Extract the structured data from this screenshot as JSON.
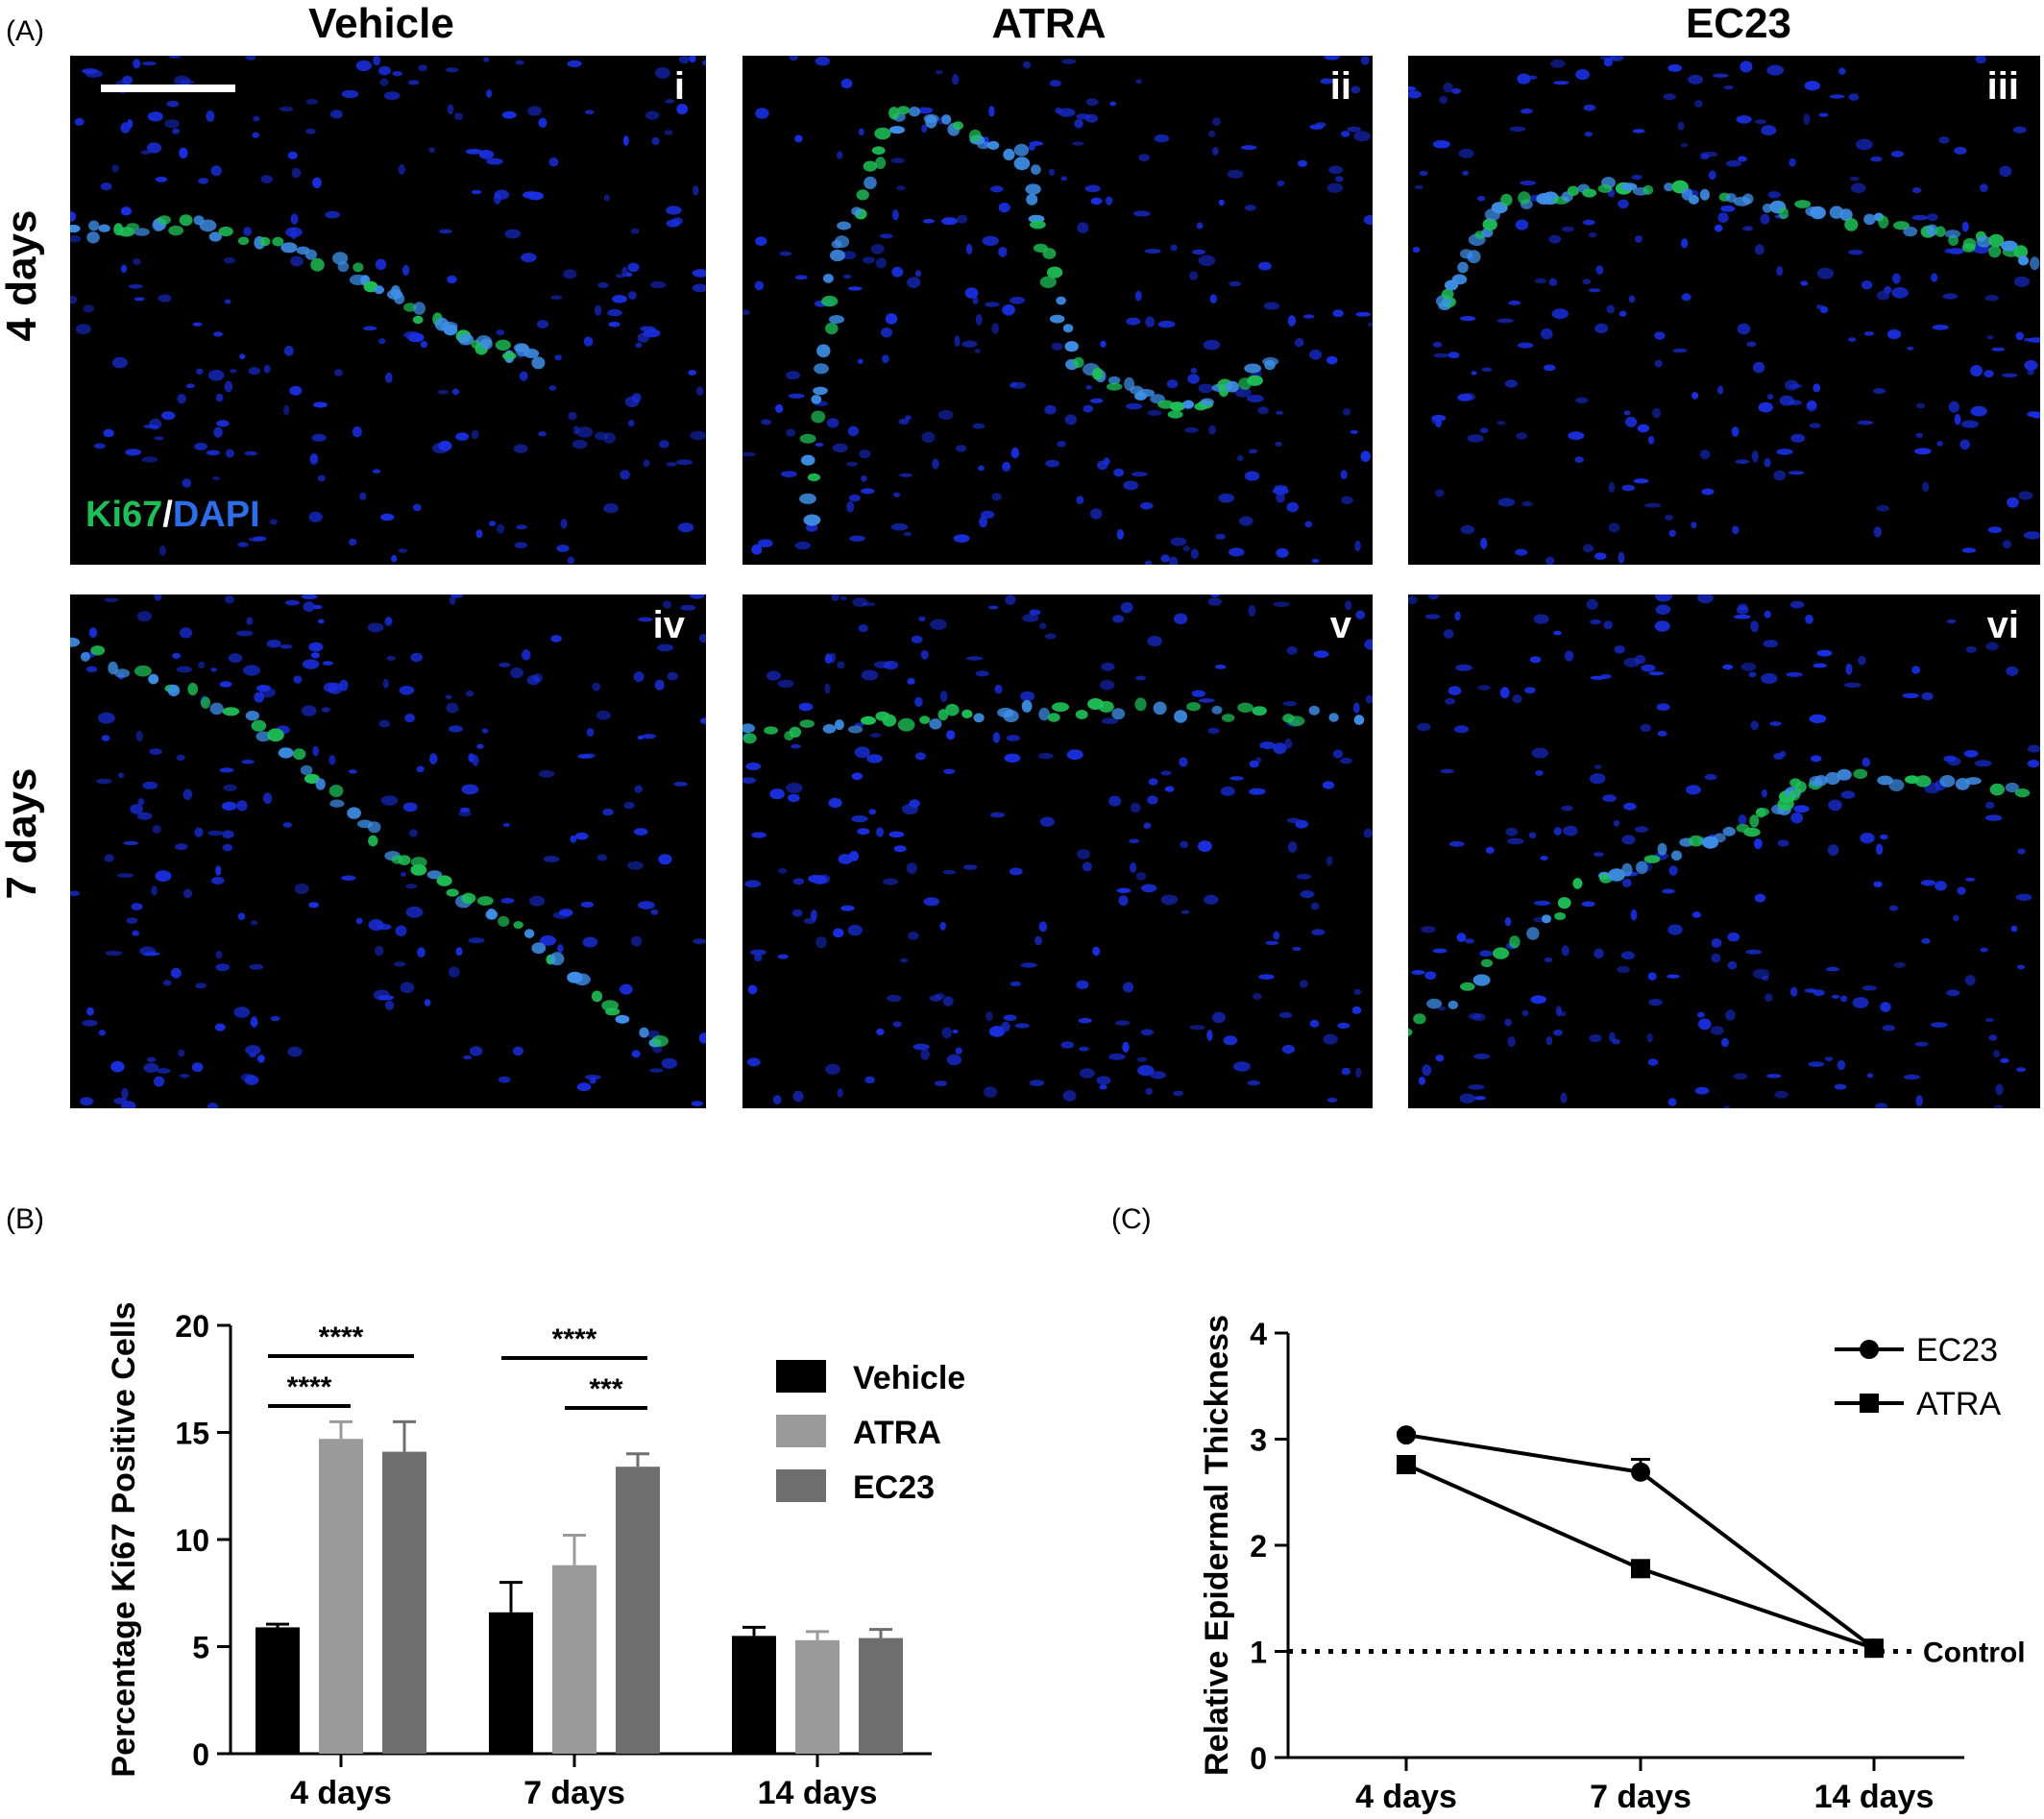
{
  "panel_labels": {
    "A": "(A)",
    "B": "(B)",
    "C": "(C)"
  },
  "columns": [
    "Vehicle",
    "ATRA",
    "EC23"
  ],
  "rows": [
    "4 days",
    "7 days"
  ],
  "image_labels": [
    "i",
    "ii",
    "iii",
    "iv",
    "v",
    "vi"
  ],
  "stain": {
    "ki67": "Ki67",
    "slash": "/",
    "dapi": "DAPI"
  },
  "colors": {
    "ki67_green": "#1fbf57",
    "dapi_blue": "#1a2fe0",
    "vehicle": "#000000",
    "atra": "#9a9a9a",
    "ec23": "#6e6e6e"
  },
  "chart_data": [
    {
      "type": "bar",
      "ylabel": "Percentage Ki67 Positive Cells",
      "ylim": [
        0,
        20
      ],
      "yticks": [
        "0",
        "5",
        "10",
        "15",
        "20"
      ],
      "categories": [
        "4 days",
        "7 days",
        "14 days"
      ],
      "series": [
        {
          "name": "Vehicle",
          "values": [
            5.9,
            6.6,
            5.5
          ],
          "errors": [
            0.15,
            1.4,
            0.4
          ]
        },
        {
          "name": "ATRA",
          "values": [
            14.7,
            8.8,
            5.3
          ],
          "errors": [
            0.8,
            1.4,
            0.4
          ]
        },
        {
          "name": "EC23",
          "values": [
            14.1,
            13.4,
            5.4
          ],
          "errors": [
            1.4,
            0.6,
            0.4
          ]
        }
      ],
      "significance": [
        {
          "group": 0,
          "from": 0,
          "to": 2,
          "label": "****"
        },
        {
          "group": 0,
          "from": 0,
          "to": 1,
          "label": "****"
        },
        {
          "group": 1,
          "from": 0,
          "to": 2,
          "label": "****"
        },
        {
          "group": 1,
          "from": 1,
          "to": 2,
          "label": "***"
        }
      ],
      "legend": "right"
    },
    {
      "type": "line",
      "ylabel": "Relative Epidermal Thickness",
      "ylim": [
        0,
        4
      ],
      "yticks": [
        "0",
        "1",
        "2",
        "3",
        "4"
      ],
      "categories": [
        "4 days",
        "7 days",
        "14 days"
      ],
      "series": [
        {
          "name": "EC23",
          "marker": "circle",
          "values": [
            3.04,
            2.69,
            1.03
          ],
          "errors": [
            0.02,
            0.12,
            0.02
          ]
        },
        {
          "name": "ATRA",
          "marker": "square",
          "values": [
            2.76,
            1.78,
            1.03
          ],
          "errors": [
            0.02,
            0.03,
            0.02
          ]
        }
      ],
      "reference": {
        "value": 1,
        "label": "Control"
      },
      "legend": "top-right"
    }
  ]
}
